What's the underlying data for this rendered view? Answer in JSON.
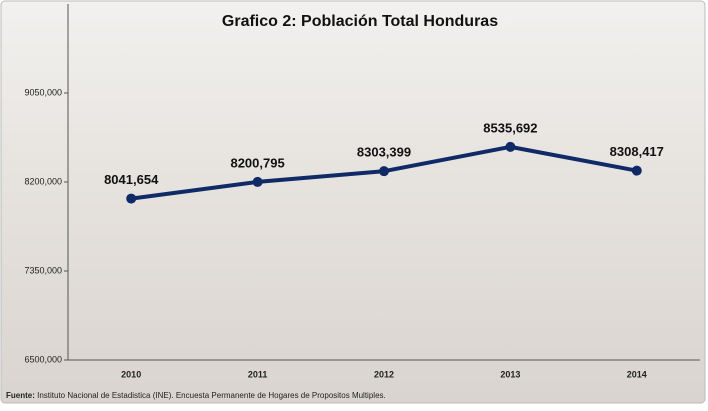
{
  "chart_data": {
    "type": "line",
    "title": "Grafico 2:  Población Total Honduras",
    "categories": [
      "2010",
      "2011",
      "2012",
      "2013",
      "2014"
    ],
    "values": [
      8041654,
      8200795,
      8303399,
      8535692,
      8308417
    ],
    "value_labels": [
      "8041,654",
      "8200,795",
      "8303,399",
      "8535,692",
      "8308,417"
    ],
    "color": "#0f2a66",
    "ylim": [
      6500000,
      9900000
    ],
    "yticks": [
      {
        "value": 6500000,
        "label": "6500,000"
      },
      {
        "value": 7350000,
        "label": "7350,000"
      },
      {
        "value": 8200000,
        "label": "8200,000"
      },
      {
        "value": 9050000,
        "label": "9050,000"
      }
    ],
    "source_label": "Fuente:",
    "source_text": " Instituto Nacional de Estadistica (INE). Encuesta Permanente de Hogares de Propositos Multiples."
  }
}
